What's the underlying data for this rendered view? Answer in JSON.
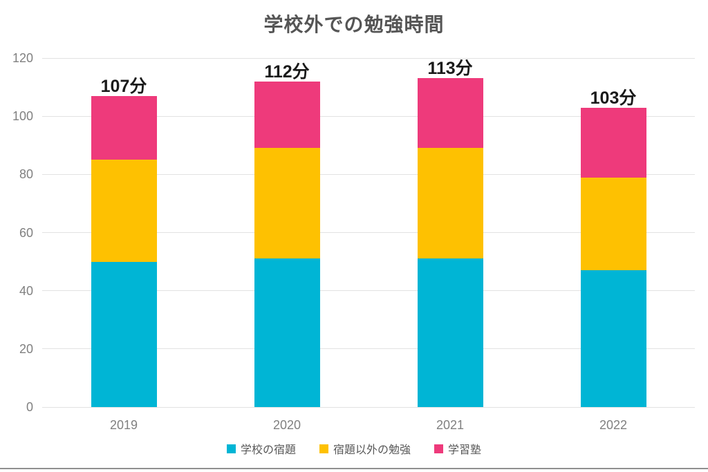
{
  "chart_data": {
    "type": "bar",
    "stacked": true,
    "title": "学校外での勉強時間",
    "categories": [
      "2019",
      "2020",
      "2021",
      "2022"
    ],
    "series": [
      {
        "name": "学校の宿題",
        "color": "#00b5d5",
        "values": [
          50,
          51,
          51,
          47
        ]
      },
      {
        "name": "宿題以外の勉強",
        "color": "#fec101",
        "values": [
          35,
          38,
          38,
          32
        ]
      },
      {
        "name": "学習塾",
        "color": "#ee3a7b",
        "values": [
          22,
          23,
          24,
          24
        ]
      }
    ],
    "totals": [
      107,
      112,
      113,
      103
    ],
    "total_labels": [
      "107分",
      "112分",
      "113分",
      "103分"
    ],
    "unit": "分",
    "ylim": [
      0,
      120
    ],
    "ytick_step": 20,
    "ytick_labels": [
      "0",
      "20",
      "40",
      "60",
      "80",
      "100",
      "120"
    ],
    "grid": "horizontal",
    "legend_position": "bottom",
    "colors": {
      "title_text": "#555555",
      "total_label_text": "#1a1a1a",
      "tick_text": "#808080",
      "gridline": "#e2e2e2",
      "legend_text": "#595959",
      "background": "#ffffff",
      "bottom_divider": "#8f8f8f"
    }
  }
}
